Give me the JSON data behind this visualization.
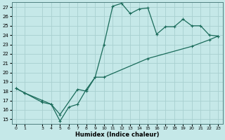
{
  "xlabel": "Humidex (Indice chaleur)",
  "bg_color": "#c5e8e8",
  "grid_color": "#a8d0d0",
  "line_color": "#1a6b5a",
  "ylim": [
    14.5,
    27.5
  ],
  "xlim": [
    -0.5,
    23.5
  ],
  "yticks": [
    15,
    16,
    17,
    18,
    19,
    20,
    21,
    22,
    23,
    24,
    25,
    26,
    27
  ],
  "xticks": [
    0,
    1,
    3,
    4,
    5,
    6,
    7,
    8,
    9,
    10,
    11,
    12,
    13,
    14,
    15,
    16,
    17,
    18,
    19,
    20,
    21,
    22,
    23
  ],
  "line1_x": [
    0,
    1,
    3,
    4,
    5,
    6,
    7,
    8,
    9,
    10,
    11,
    12,
    13,
    14,
    15,
    16,
    17,
    18,
    19,
    20,
    21,
    22,
    23
  ],
  "line1_y": [
    18.3,
    17.8,
    16.8,
    16.6,
    14.8,
    16.3,
    16.6,
    18.2,
    19.5,
    23.0,
    27.1,
    27.4,
    26.3,
    26.8,
    26.9,
    24.1,
    24.9,
    24.9,
    25.7,
    25.0,
    25.0,
    24.0,
    23.9
  ],
  "line2_x": [
    0,
    1,
    3,
    4,
    5,
    7,
    8,
    9,
    10,
    15,
    20,
    22,
    23
  ],
  "line2_y": [
    18.3,
    17.8,
    17.0,
    16.6,
    15.5,
    18.2,
    18.0,
    19.5,
    19.5,
    21.5,
    22.8,
    23.5,
    23.9
  ],
  "markersize": 2.5,
  "linewidth": 0.9
}
